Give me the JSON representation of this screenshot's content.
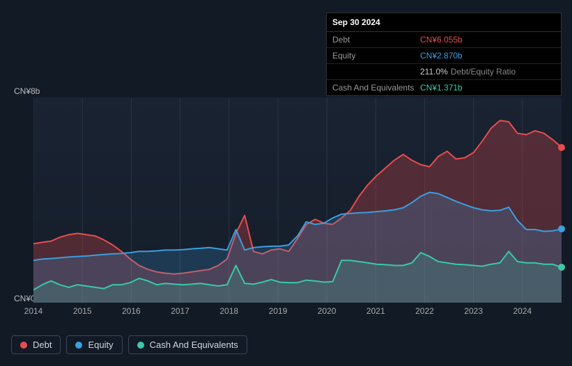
{
  "tooltip": {
    "date": "Sep 30 2024",
    "rows": {
      "debt": {
        "label": "Debt",
        "value": "CN¥6.055b"
      },
      "equity": {
        "label": "Equity",
        "value": "CN¥2.870b"
      },
      "ratio": {
        "pct": "211.0%",
        "label": "Debt/Equity Ratio"
      },
      "cash": {
        "label": "Cash And Equivalents",
        "value": "CN¥1.371b"
      }
    }
  },
  "chart": {
    "type": "area",
    "ylim": [
      0,
      8
    ],
    "y_axis_labels": {
      "top": "CN¥8b",
      "bottom": "CN¥0"
    },
    "x_ticks": [
      "2014",
      "2015",
      "2016",
      "2017",
      "2018",
      "2019",
      "2020",
      "2021",
      "2022",
      "2023",
      "2024"
    ],
    "background_color": "#1a2332",
    "series": [
      {
        "name": "Debt",
        "color": "#e84d4d",
        "fill_opacity": 0.28,
        "line_width": 2,
        "data": [
          2.3,
          2.35,
          2.4,
          2.55,
          2.65,
          2.7,
          2.65,
          2.6,
          2.45,
          2.25,
          2.0,
          1.7,
          1.45,
          1.3,
          1.2,
          1.15,
          1.12,
          1.15,
          1.2,
          1.25,
          1.3,
          1.45,
          1.7,
          2.7,
          3.4,
          2.0,
          1.9,
          2.05,
          2.1,
          2.0,
          2.5,
          3.05,
          3.25,
          3.1,
          3.05,
          3.3,
          3.6,
          4.15,
          4.6,
          4.95,
          5.25,
          5.55,
          5.78,
          5.55,
          5.38,
          5.3,
          5.7,
          5.9,
          5.6,
          5.65,
          5.85,
          6.3,
          6.8,
          7.1,
          7.05,
          6.6,
          6.55,
          6.7,
          6.6,
          6.35,
          6.055
        ]
      },
      {
        "name": "Equity",
        "color": "#3b9fe0",
        "fill_opacity": 0.22,
        "line_width": 2,
        "data": [
          1.65,
          1.7,
          1.72,
          1.75,
          1.78,
          1.8,
          1.82,
          1.85,
          1.88,
          1.9,
          1.92,
          1.95,
          2.0,
          2.0,
          2.02,
          2.05,
          2.05,
          2.07,
          2.1,
          2.12,
          2.15,
          2.1,
          2.05,
          2.85,
          2.05,
          2.15,
          2.18,
          2.2,
          2.2,
          2.25,
          2.6,
          3.15,
          3.05,
          3.1,
          3.3,
          3.45,
          3.48,
          3.5,
          3.52,
          3.55,
          3.58,
          3.62,
          3.7,
          3.9,
          4.15,
          4.3,
          4.25,
          4.1,
          3.95,
          3.82,
          3.7,
          3.62,
          3.58,
          3.6,
          3.72,
          3.2,
          2.85,
          2.85,
          2.78,
          2.8,
          2.87
        ]
      },
      {
        "name": "Cash And Equivalents",
        "color": "#3bc9a8",
        "fill_opacity": 0.2,
        "line_width": 2,
        "data": [
          0.5,
          0.7,
          0.85,
          0.7,
          0.6,
          0.7,
          0.65,
          0.6,
          0.55,
          0.7,
          0.7,
          0.78,
          0.95,
          0.85,
          0.7,
          0.75,
          0.72,
          0.7,
          0.72,
          0.75,
          0.7,
          0.65,
          0.7,
          1.45,
          0.75,
          0.72,
          0.8,
          0.9,
          0.8,
          0.78,
          0.78,
          0.88,
          0.85,
          0.8,
          0.82,
          1.65,
          1.65,
          1.6,
          1.55,
          1.5,
          1.48,
          1.45,
          1.45,
          1.55,
          1.95,
          1.8,
          1.6,
          1.55,
          1.5,
          1.48,
          1.45,
          1.42,
          1.5,
          1.55,
          2.0,
          1.6,
          1.55,
          1.55,
          1.5,
          1.5,
          1.371
        ]
      }
    ]
  },
  "legend": {
    "items": [
      {
        "label": "Debt",
        "color": "#e84d4d"
      },
      {
        "label": "Equity",
        "color": "#3b9fe0"
      },
      {
        "label": "Cash And Equivalents",
        "color": "#3bc9a8"
      }
    ]
  }
}
